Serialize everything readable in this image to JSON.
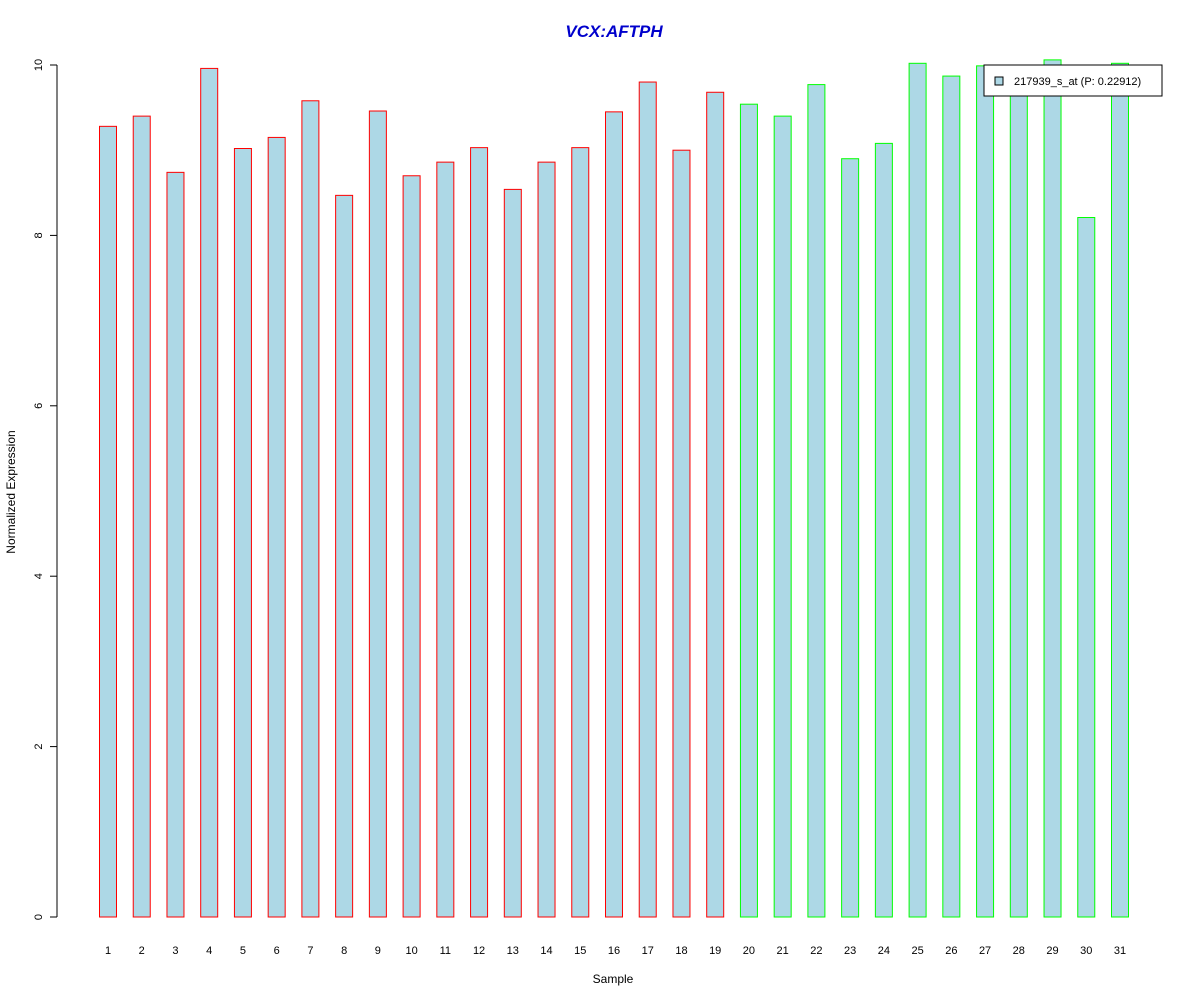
{
  "chart_data": {
    "type": "bar",
    "title": "VCX:AFTPH",
    "xlabel": "Sample",
    "ylabel": "Normalized Expression",
    "ylim": [
      0,
      10
    ],
    "yticks": [
      "0",
      "2",
      "4",
      "6",
      "8",
      "10"
    ],
    "categories": [
      "1",
      "2",
      "3",
      "4",
      "5",
      "6",
      "7",
      "8",
      "9",
      "10",
      "11",
      "12",
      "13",
      "14",
      "15",
      "16",
      "17",
      "18",
      "19",
      "20",
      "21",
      "22",
      "23",
      "24",
      "25",
      "26",
      "27",
      "28",
      "29",
      "30",
      "31"
    ],
    "series": [
      {
        "name": "217939_s_at (P: 0.22912)",
        "values": [
          9.28,
          9.4,
          8.74,
          9.96,
          9.02,
          9.15,
          9.58,
          8.47,
          9.46,
          8.7,
          8.86,
          9.03,
          8.54,
          8.86,
          9.03,
          9.45,
          9.8,
          9.0,
          9.68,
          9.54,
          9.4,
          9.77,
          8.9,
          9.08,
          10.02,
          9.87,
          9.99,
          9.74,
          10.06,
          8.21,
          10.02
        ]
      }
    ],
    "groups": [
      {
        "from": 1,
        "to": 19,
        "border_color": "#ff0000"
      },
      {
        "from": 20,
        "to": 31,
        "border_color": "#00ff00"
      }
    ],
    "colors": {
      "bar_fill": "#add8e6",
      "title": "#0000cc",
      "axis": "#000000"
    },
    "legend": {
      "position": "top-right",
      "label": "217939_s_at (P: 0.22912)"
    },
    "grid": false
  }
}
